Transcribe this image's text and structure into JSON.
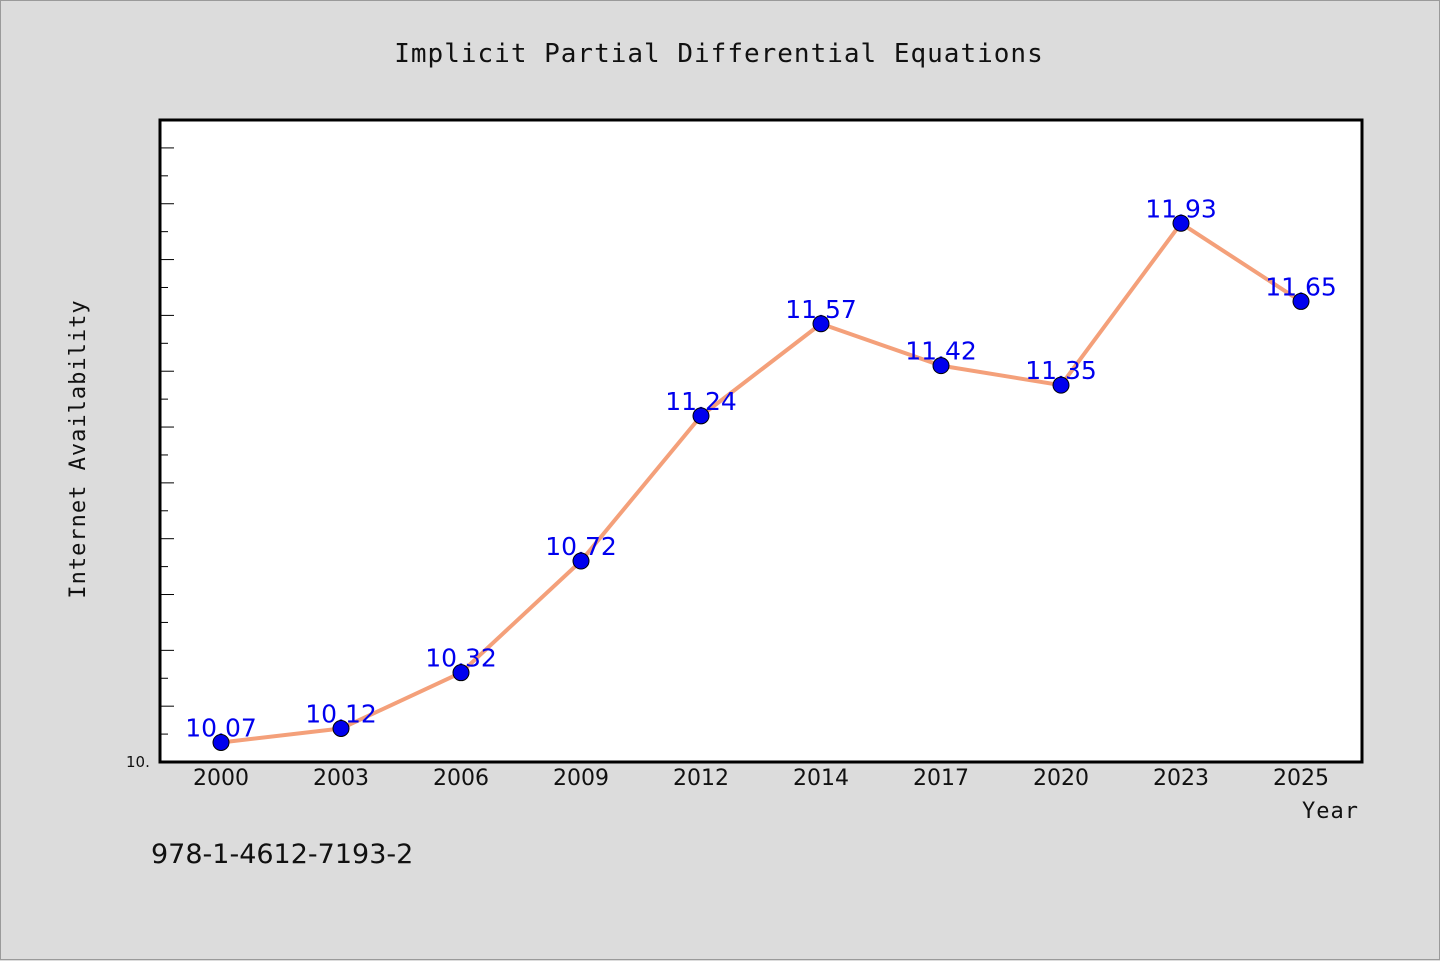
{
  "colors": {
    "background": "#dcdcdc",
    "plot_background": "#ffffff",
    "line": "#f4a07a",
    "marker": "#0000ee",
    "data_label": "#0000ee"
  },
  "isbn": "978-1-4612-7193-2",
  "chart_data": {
    "type": "line",
    "title": "Implicit Partial Differential Equations",
    "xlabel": "Year",
    "ylabel": "Internet Availability",
    "categories": [
      "2000",
      "2003",
      "2006",
      "2009",
      "2012",
      "2014",
      "2017",
      "2020",
      "2023",
      "2025"
    ],
    "series": [
      {
        "values": [
          10.07,
          10.12,
          10.32,
          10.72,
          11.24,
          11.57,
          11.42,
          11.35,
          11.93,
          11.65
        ]
      }
    ],
    "data_labels": [
      "10.07",
      "10.12",
      "10.32",
      "10.72",
      "11.24",
      "11.57",
      "11.42",
      "11.35",
      "11.93",
      "11.65"
    ],
    "ylim": [
      10.0,
      12.3
    ],
    "ytick_label": "10.",
    "grid": false,
    "legend": false
  }
}
